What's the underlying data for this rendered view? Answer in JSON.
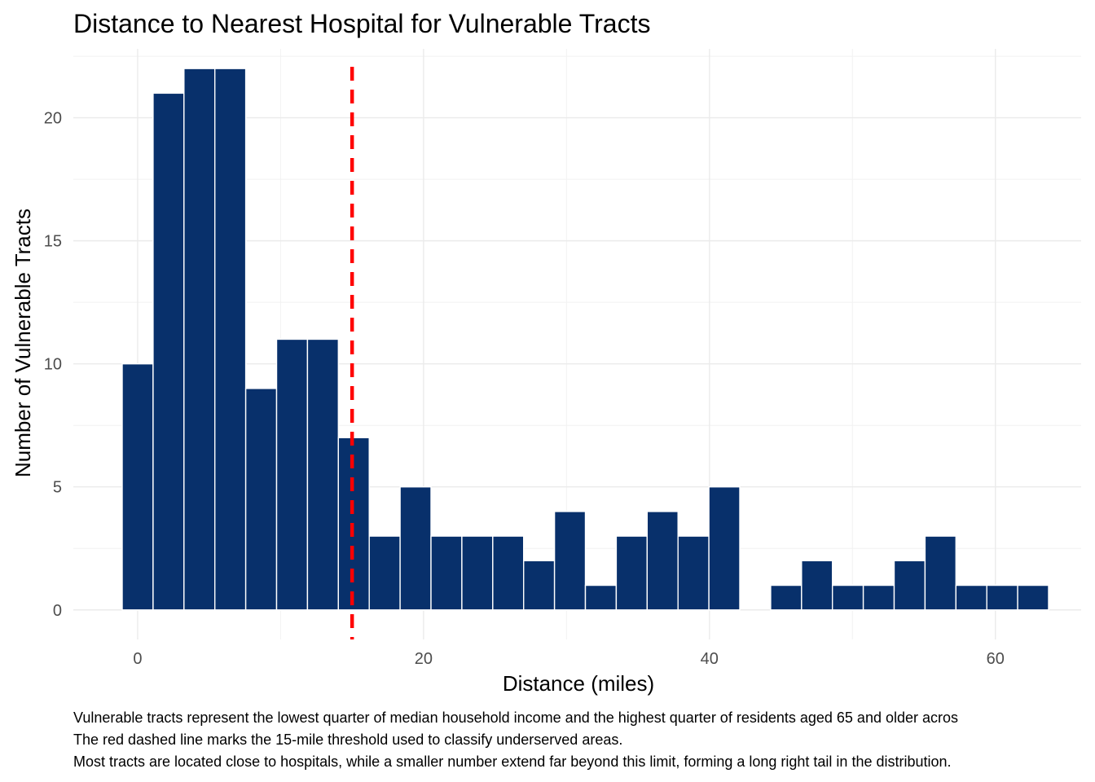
{
  "chart_data": {
    "type": "bar",
    "title": "Distance to Nearest Hospital for Vulnerable Tracts",
    "xlabel": "Distance (miles)",
    "ylabel": "Number of Vulnerable Tracts",
    "xlim": [
      -4.5,
      66
    ],
    "ylim": [
      -1.2,
      22.8
    ],
    "x_ticks": [
      0,
      20,
      40,
      60
    ],
    "y_ticks": [
      0,
      5,
      10,
      15,
      20
    ],
    "grid": true,
    "bin_width": 2.16,
    "bins": [
      {
        "start": -1.08,
        "count": 10
      },
      {
        "start": 1.08,
        "count": 21
      },
      {
        "start": 3.24,
        "count": 22
      },
      {
        "start": 5.4,
        "count": 22
      },
      {
        "start": 7.56,
        "count": 9
      },
      {
        "start": 9.72,
        "count": 11
      },
      {
        "start": 11.88,
        "count": 11
      },
      {
        "start": 14.04,
        "count": 7
      },
      {
        "start": 16.2,
        "count": 3
      },
      {
        "start": 18.36,
        "count": 5
      },
      {
        "start": 20.52,
        "count": 3
      },
      {
        "start": 22.68,
        "count": 3
      },
      {
        "start": 24.84,
        "count": 3
      },
      {
        "start": 27.0,
        "count": 2
      },
      {
        "start": 29.16,
        "count": 4
      },
      {
        "start": 31.32,
        "count": 1
      },
      {
        "start": 33.48,
        "count": 3
      },
      {
        "start": 35.64,
        "count": 4
      },
      {
        "start": 37.8,
        "count": 3
      },
      {
        "start": 39.96,
        "count": 5
      },
      {
        "start": 42.12,
        "count": 0
      },
      {
        "start": 44.28,
        "count": 1
      },
      {
        "start": 46.44,
        "count": 2
      },
      {
        "start": 48.6,
        "count": 1
      },
      {
        "start": 50.76,
        "count": 1
      },
      {
        "start": 52.92,
        "count": 2
      },
      {
        "start": 55.08,
        "count": 3
      },
      {
        "start": 57.24,
        "count": 1
      },
      {
        "start": 59.4,
        "count": 1
      },
      {
        "start": 61.56,
        "count": 1
      }
    ],
    "threshold": 15,
    "threshold_color": "#ff0000",
    "bar_color": "#08306b",
    "caption": [
      "Vulnerable tracts represent the lowest quarter of median household income and the highest quarter of residents aged 65 and older acros",
      "The red dashed line marks the 15-mile threshold used to classify underserved areas.",
      "Most tracts are located close to hospitals, while a smaller number extend far beyond this limit, forming a long right tail in the distribution."
    ]
  }
}
